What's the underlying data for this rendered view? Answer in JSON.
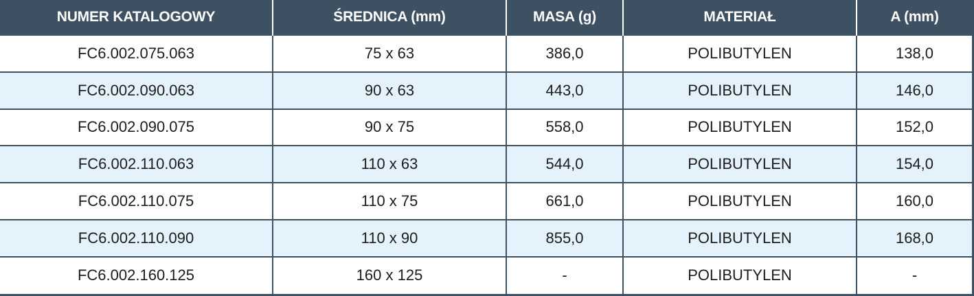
{
  "headers": [
    "NUMER KATALOGOWY",
    "ŚREDNICA (mm)",
    "MASA (g)",
    "MATERIAŁ",
    "A (mm)"
  ],
  "rows": [
    [
      "FC6.002.075.063",
      "75 x 63",
      "386,0",
      "POLIBUTYLEN",
      "138,0"
    ],
    [
      "FC6.002.090.063",
      "90 x 63",
      "443,0",
      "POLIBUTYLEN",
      "146,0"
    ],
    [
      "FC6.002.090.075",
      "90 x 75",
      "558,0",
      "POLIBUTYLEN",
      "152,0"
    ],
    [
      "FC6.002.110.063",
      "110 x 63",
      "544,0",
      "POLIBUTYLEN",
      "154,0"
    ],
    [
      "FC6.002.110.075",
      "110 x 75",
      "661,0",
      "POLIBUTYLEN",
      "160,0"
    ],
    [
      "FC6.002.110.090",
      "110 x 90",
      "855,0",
      "POLIBUTYLEN",
      "168,0"
    ],
    [
      "FC6.002.160.125",
      "160 x 125",
      "-",
      "POLIBUTYLEN",
      "-"
    ]
  ],
  "colors": {
    "header_bg": "#3d5162",
    "header_text": "#ffffff",
    "row_alt_bg": "#e4f2fc",
    "row_bg": "#ffffff",
    "grid_line": "#3d5162"
  }
}
